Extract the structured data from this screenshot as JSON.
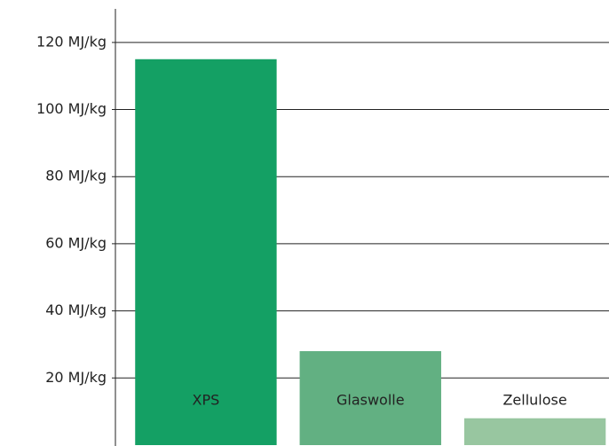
{
  "chart_data": {
    "type": "bar",
    "categories": [
      "XPS",
      "Glaswolle",
      "Zellulose"
    ],
    "values": [
      115,
      28,
      8
    ],
    "colors": [
      "#14a064",
      "#62b082",
      "#98c6a0"
    ],
    "ylim": [
      0,
      130
    ],
    "yticks": [
      {
        "value": 20,
        "label": "20 MJ/kg"
      },
      {
        "value": 40,
        "label": "40 MJ/kg"
      },
      {
        "value": 60,
        "label": "60 MJ/kg"
      },
      {
        "value": 80,
        "label": "80 MJ/kg"
      },
      {
        "value": 100,
        "label": "100 MJ/kg"
      },
      {
        "value": 120,
        "label": "120 MJ/kg"
      }
    ],
    "grid": true
  }
}
